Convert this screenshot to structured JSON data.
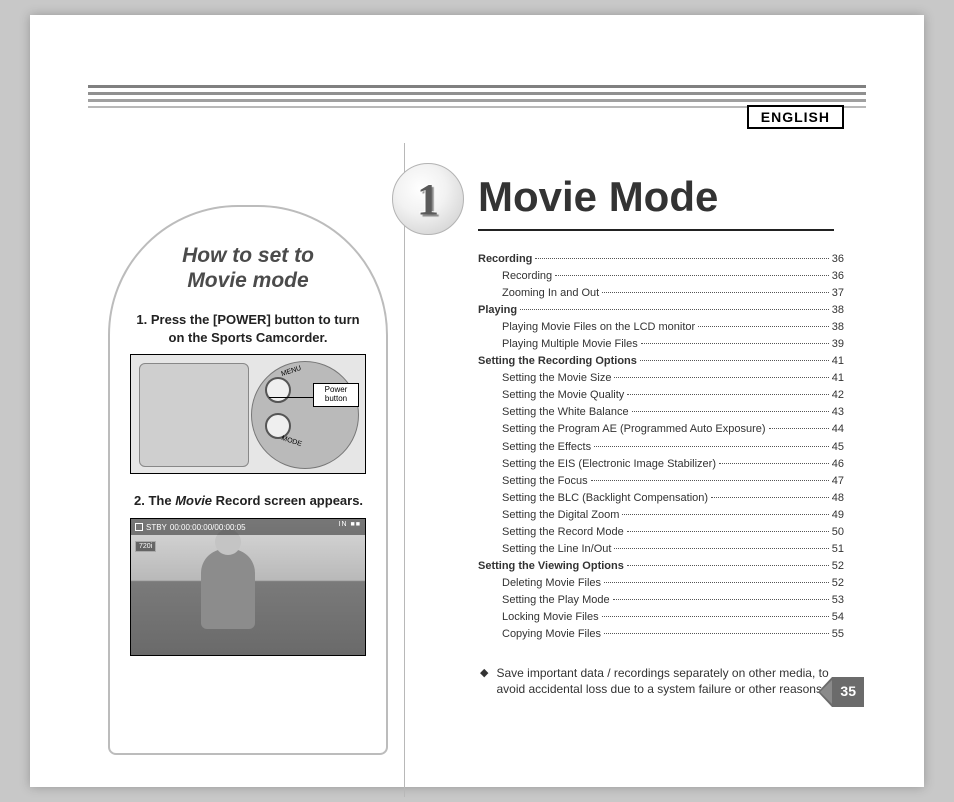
{
  "language_label": "ENGLISH",
  "chapter": {
    "number": "1",
    "title": "Movie Mode"
  },
  "callout": {
    "heading_line1": "How to set to",
    "heading_line2": "Movie mode",
    "step1": "1. Press the [POWER] button to turn on the Sports Camcorder.",
    "step2_prefix": "2. The ",
    "step2_italic": "Movie",
    "step2_suffix": " Record screen appears.",
    "power_tag_l1": "Power",
    "power_tag_l2": "button",
    "menu_label": "MENU",
    "mode_label": "MODE",
    "osd_status": "STBY",
    "osd_time": "00:00:00:00/00:00:05",
    "osd_in": "IN",
    "osd_res": "720i"
  },
  "toc": [
    {
      "label": "Recording",
      "page": "36",
      "bold": true,
      "indent": 0
    },
    {
      "label": "Recording",
      "page": "36",
      "bold": false,
      "indent": 1
    },
    {
      "label": "Zooming In and Out",
      "page": "37",
      "bold": false,
      "indent": 1
    },
    {
      "label": "Playing",
      "page": "38",
      "bold": true,
      "indent": 0
    },
    {
      "label": "Playing Movie Files on the LCD monitor",
      "page": "38",
      "bold": false,
      "indent": 1
    },
    {
      "label": "Playing Multiple Movie Files",
      "page": "39",
      "bold": false,
      "indent": 1
    },
    {
      "label": "Setting the Recording Options",
      "page": "41",
      "bold": true,
      "indent": 0
    },
    {
      "label": "Setting the Movie Size",
      "page": "41",
      "bold": false,
      "indent": 1
    },
    {
      "label": "Setting the Movie Quality",
      "page": "42",
      "bold": false,
      "indent": 1
    },
    {
      "label": "Setting the White Balance",
      "page": "43",
      "bold": false,
      "indent": 1
    },
    {
      "label": "Setting the Program AE (Programmed Auto Exposure)",
      "page": "44",
      "bold": false,
      "indent": 1
    },
    {
      "label": "Setting the Effects",
      "page": "45",
      "bold": false,
      "indent": 1
    },
    {
      "label": "Setting the EIS (Electronic Image Stabilizer)",
      "page": "46",
      "bold": false,
      "indent": 1
    },
    {
      "label": "Setting the Focus",
      "page": "47",
      "bold": false,
      "indent": 1
    },
    {
      "label": "Setting the BLC (Backlight Compensation)",
      "page": "48",
      "bold": false,
      "indent": 1
    },
    {
      "label": "Setting the Digital Zoom",
      "page": "49",
      "bold": false,
      "indent": 1
    },
    {
      "label": "Setting the Record Mode",
      "page": "50",
      "bold": false,
      "indent": 1
    },
    {
      "label": "Setting the Line In/Out",
      "page": "51",
      "bold": false,
      "indent": 1
    },
    {
      "label": "Setting the Viewing Options",
      "page": "52",
      "bold": true,
      "indent": 0
    },
    {
      "label": "Deleting Movie Files",
      "page": "52",
      "bold": false,
      "indent": 1
    },
    {
      "label": "Setting the Play Mode",
      "page": "53",
      "bold": false,
      "indent": 1
    },
    {
      "label": "Locking Movie Files",
      "page": "54",
      "bold": false,
      "indent": 1
    },
    {
      "label": "Copying Movie Files",
      "page": "55",
      "bold": false,
      "indent": 1
    }
  ],
  "note": "Save important data / recordings separately on other media, to avoid accidental loss due to a system failure or other reasons.",
  "page_number": "35",
  "colors": {
    "page_bg": "#ffffff",
    "outer_bg": "#c8c8c8",
    "text": "#333333",
    "rule": "#222222",
    "pagenum_fill": "#6b6b6b"
  }
}
